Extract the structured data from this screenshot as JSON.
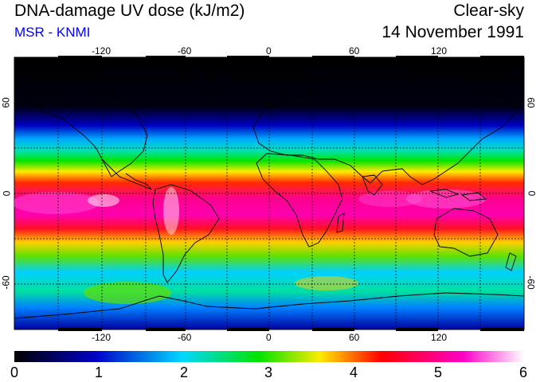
{
  "header": {
    "title": "DNA-damage UV dose (kJ/m2)",
    "subtitle": "MSR - KNMI",
    "sky_condition": "Clear-sky",
    "date": "14 November 1991"
  },
  "map": {
    "projection": "equirectangular",
    "lon_range": [
      -180,
      180
    ],
    "lat_range": [
      -90,
      90
    ],
    "lon_ticks": [
      "-120",
      "-60",
      "0",
      "60",
      "120"
    ],
    "lat_ticks": [
      "60",
      "0",
      "-60"
    ],
    "gridlines": "dashed every 30 degrees",
    "features": [
      "coastlines",
      "UV dose field"
    ]
  },
  "colorbar": {
    "min": 0,
    "max": 6,
    "labels": [
      "0",
      "1",
      "2",
      "3",
      "4",
      "5",
      "6"
    ],
    "colors": [
      "#000000",
      "#0000c8",
      "#00d8ff",
      "#00e400",
      "#ffea00",
      "#ff0000",
      "#ff00c8",
      "#ffffff"
    ]
  }
}
